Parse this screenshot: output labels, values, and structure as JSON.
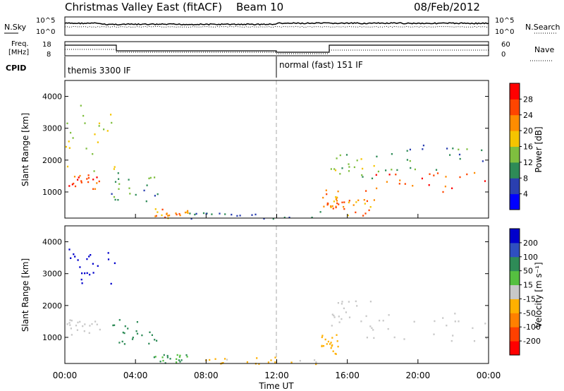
{
  "header": {
    "radar": "Christmas Valley East (fitACF)",
    "beam": "Beam 10",
    "date": "08/Feb/2012"
  },
  "noise_panel": {
    "left_label": "N.Sky",
    "right_label": "N.Search",
    "left_ticks": [
      "10^5",
      "10^0"
    ],
    "right_ticks": [
      "10^5",
      "10^0"
    ]
  },
  "freq_panel": {
    "left_label_line1": "Freq.",
    "left_label_line2": "[MHz]",
    "right_label": "Nave",
    "left_ticks": [
      "18",
      "8"
    ],
    "right_ticks": [
      "60",
      "0"
    ]
  },
  "cpid": {
    "label": "CPID",
    "segments": [
      {
        "name": "themis 3300 IF",
        "start_hour": 0,
        "end_hour": 12
      },
      {
        "name": "normal (fast) 151 IF",
        "start_hour": 12,
        "end_hour": 24
      }
    ]
  },
  "power_panel": {
    "ylabel": "Slant Range [km]",
    "colorbar_label": "Power [dB]",
    "colorbar_ticks": [
      "28",
      "24",
      "20",
      "16",
      "12",
      "8",
      "4"
    ],
    "colors": [
      "#0000ff",
      "#2a3fb0",
      "#2e8b57",
      "#7fbf3f",
      "#f5c400",
      "#ff8c00",
      "#ff4500",
      "#ff0000"
    ]
  },
  "velocity_panel": {
    "ylabel": "Slant Range [km]",
    "colorbar_label": "Velocity [m s⁻¹]",
    "colorbar_ticks": [
      "200",
      "100",
      "50",
      "15",
      "-15",
      "-50",
      "-100",
      "-200"
    ],
    "colors": [
      "#0000cc",
      "#2f4fc0",
      "#2e8b57",
      "#55c040",
      "#c8c8c8",
      "#ffb000",
      "#ff8000",
      "#ff4000",
      "#ff0000"
    ]
  },
  "x_axis": {
    "label": "Time UT",
    "ticks": [
      "00:00",
      "04:00",
      "08:00",
      "12:00",
      "16:00",
      "20:00",
      "00:00"
    ]
  },
  "chart_data": [
    {
      "type": "heatmap",
      "title": "Power [dB]",
      "xlabel": "Time UT",
      "ylabel": "Slant Range [km]",
      "xlim_hours": [
        0,
        24
      ],
      "ylim_km": [
        180,
        4500
      ],
      "y_ticks_km": [
        1000,
        2000,
        3000,
        4000
      ],
      "x_ticks_hours": [
        0,
        4,
        8,
        12,
        16,
        20,
        24
      ],
      "colorbar_ticks_db": [
        4,
        8,
        12,
        16,
        20,
        24,
        28
      ],
      "echo_regions": [
        {
          "t0": 0.0,
          "t1": 2.0,
          "r0": 1100,
          "r1": 1600,
          "power_db": 26
        },
        {
          "t0": 0.0,
          "t1": 2.8,
          "r0": 1600,
          "r1": 3800,
          "power_db": 16
        },
        {
          "t0": 2.5,
          "t1": 5.3,
          "r0": 700,
          "r1": 1800,
          "power_db": 10
        },
        {
          "t0": 5.0,
          "t1": 7.0,
          "r0": 200,
          "r1": 500,
          "power_db": 22
        },
        {
          "t0": 7.0,
          "t1": 14.5,
          "r0": 180,
          "r1": 400,
          "power_db": 8
        },
        {
          "t0": 14.5,
          "t1": 15.5,
          "r0": 500,
          "r1": 1100,
          "power_db": 22
        },
        {
          "t0": 15.3,
          "t1": 17.5,
          "r0": 250,
          "r1": 900,
          "power_db": 22
        },
        {
          "t0": 15.0,
          "t1": 18.0,
          "r0": 1300,
          "r1": 2200,
          "power_db": 14
        },
        {
          "t0": 16.5,
          "t1": 24.0,
          "r0": 900,
          "r1": 1700,
          "power_db": 26
        },
        {
          "t0": 17.5,
          "t1": 24.0,
          "r0": 1700,
          "r1": 2500,
          "power_db": 10
        }
      ]
    },
    {
      "type": "heatmap",
      "title": "Velocity [m s⁻¹]",
      "xlabel": "Time UT",
      "ylabel": "Slant Range [km]",
      "xlim_hours": [
        0,
        24
      ],
      "ylim_km": [
        180,
        4500
      ],
      "y_ticks_km": [
        1000,
        2000,
        3000,
        4000
      ],
      "x_ticks_hours": [
        0,
        4,
        8,
        12,
        16,
        20,
        24
      ],
      "colorbar_ticks_ms": [
        -200,
        -100,
        -50,
        -15,
        15,
        50,
        100,
        200
      ],
      "echo_regions": [
        {
          "t0": 0.0,
          "t1": 2.0,
          "r0": 1100,
          "r1": 1600,
          "velocity_ms": 0
        },
        {
          "t0": 0.0,
          "t1": 2.8,
          "r0": 2600,
          "r1": 3800,
          "velocity_ms": 180
        },
        {
          "t0": 2.5,
          "t1": 5.3,
          "r0": 800,
          "r1": 1800,
          "velocity_ms": 60
        },
        {
          "t0": 5.0,
          "t1": 7.0,
          "r0": 200,
          "r1": 500,
          "velocity_ms": 30
        },
        {
          "t0": 7.0,
          "t1": 14.5,
          "r0": 180,
          "r1": 400,
          "velocity_ms": -40
        },
        {
          "t0": 14.5,
          "t1": 15.5,
          "r0": 500,
          "r1": 1100,
          "velocity_ms": -60
        },
        {
          "t0": 15.0,
          "t1": 18.0,
          "r0": 1300,
          "r1": 2200,
          "velocity_ms": 0
        },
        {
          "t0": 16.5,
          "t1": 24.0,
          "r0": 900,
          "r1": 1800,
          "velocity_ms": 0
        }
      ]
    }
  ]
}
